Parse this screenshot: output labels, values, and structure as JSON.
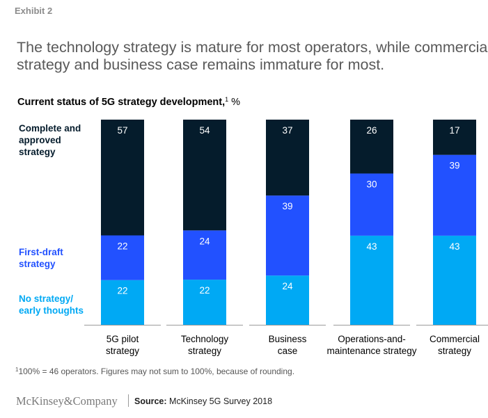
{
  "exhibit_label": "Exhibit 2",
  "headline": {
    "line1": "The technology strategy is mature for most operators, while commercial",
    "line2": "strategy and business case remains immature for most."
  },
  "subtitle": {
    "bold": "Current status of 5G strategy development,",
    "sup": "1",
    "unit": "%"
  },
  "legend": {
    "complete": "Complete and approved strategy",
    "draft": "First-draft strategy",
    "none": "No strategy/ early thoughts"
  },
  "colors": {
    "complete": "#051c2c",
    "draft": "#2251ff",
    "none": "#00a9f4",
    "axis": "#9a9a9a"
  },
  "chart_data": {
    "type": "bar",
    "stacked": true,
    "title": "Current status of 5G strategy development, %",
    "categories": [
      [
        "5G pilot",
        "strategy"
      ],
      [
        "Technology",
        "strategy"
      ],
      [
        "Business",
        "case"
      ],
      [
        "Operations-and-",
        "maintenance strategy"
      ],
      [
        "Commercial",
        "strategy"
      ]
    ],
    "series": [
      {
        "name": "No strategy/ early thoughts",
        "values": [
          22,
          22,
          24,
          43,
          43
        ]
      },
      {
        "name": "First-draft strategy",
        "values": [
          22,
          24,
          39,
          30,
          39
        ]
      },
      {
        "name": "Complete and approved strategy",
        "values": [
          57,
          54,
          37,
          26,
          17
        ]
      }
    ],
    "ylim": [
      0,
      100
    ],
    "grid": false
  },
  "footnote": {
    "sup": "1",
    "text": "100% = 46 operators. Figures may not sum to 100%, because of rounding."
  },
  "brand": "McKinsey&Company",
  "source": {
    "label": "Source:",
    "text": "McKinsey 5G Survey 2018"
  }
}
